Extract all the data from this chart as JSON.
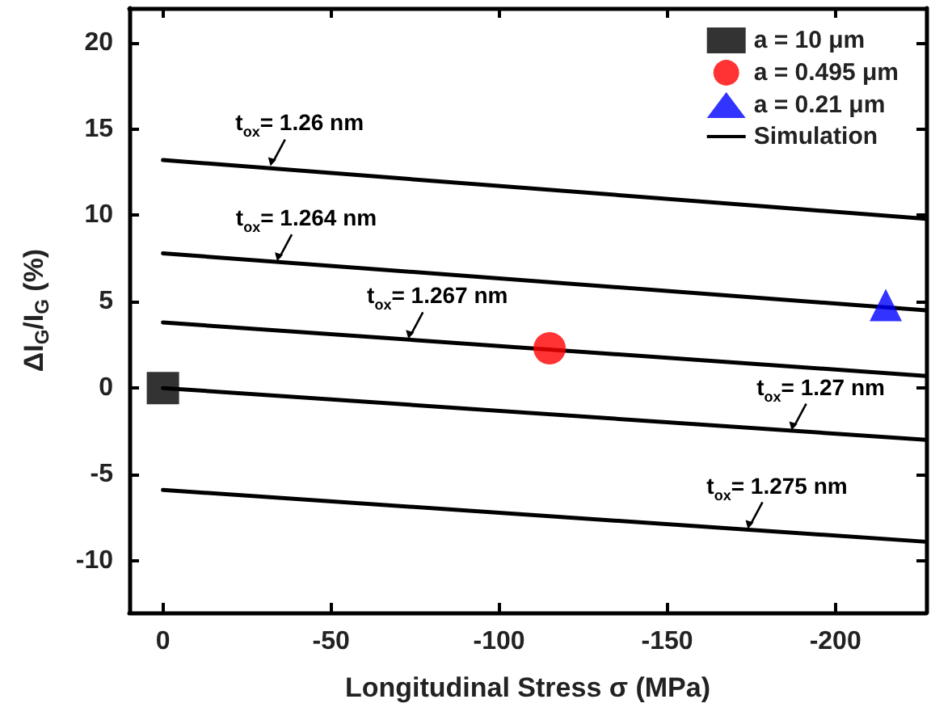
{
  "chart_data": {
    "type": "line",
    "xlabel": "Longitudinal Stress σ (MPa)",
    "ylabel": "ΔI$_{G}$/I$_{G}$ (%)",
    "xlim": [
      10,
      -227
    ],
    "xticks": [
      0,
      -50,
      -100,
      -150,
      -200
    ],
    "ylim": [
      -13,
      22
    ],
    "yticks": [
      -10,
      -5,
      0,
      5,
      10,
      15,
      20
    ],
    "legend": "top right",
    "grid": false,
    "series": [
      {
        "name": "a = 10 μm",
        "type": "scatter",
        "marker": "square",
        "color": "#000000",
        "x": [
          0
        ],
        "values": [
          0
        ]
      },
      {
        "name": "a = 0.495 μm",
        "type": "scatter",
        "marker": "circle",
        "color": "#ff0000",
        "x": [
          -115
        ],
        "values": [
          2.3
        ]
      },
      {
        "name": "a = 0.21 μm",
        "type": "scatter",
        "marker": "triangle",
        "color": "#0000ff",
        "x": [
          -215
        ],
        "values": [
          4.8
        ]
      },
      {
        "name": "Simulation",
        "color": "#000000",
        "x": [
          0,
          -227
        ],
        "values": [
          13.2,
          9.8
        ]
      },
      {
        "color": "#000000",
        "x": [
          0,
          -227
        ],
        "values": [
          7.8,
          4.5
        ]
      },
      {
        "color": "#000000",
        "x": [
          0,
          -227
        ],
        "values": [
          3.8,
          0.7
        ]
      },
      {
        "color": "#000000",
        "x": [
          0,
          -227
        ],
        "values": [
          0,
          -3
        ]
      },
      {
        "color": "#000000",
        "x": [
          0,
          -227
        ],
        "values": [
          -5.9,
          -8.9
        ]
      }
    ],
    "annotations": [
      {
        "text": "t$_{ox}$= 1.26 nm",
        "x": -32,
        "y": 12.8
      },
      {
        "text": "t$_{ox}$= 1.264 nm",
        "x": -34,
        "y": 7.3
      },
      {
        "text": "t$_{ox}$= 1.267 nm",
        "x": -73,
        "y": 2.8
      },
      {
        "text": "t$_{ox}$= 1.27 nm",
        "x": -187,
        "y": -2.5
      },
      {
        "text": "t$_{ox}$= 1.275 nm",
        "x": -174,
        "y": -8.2
      }
    ]
  }
}
